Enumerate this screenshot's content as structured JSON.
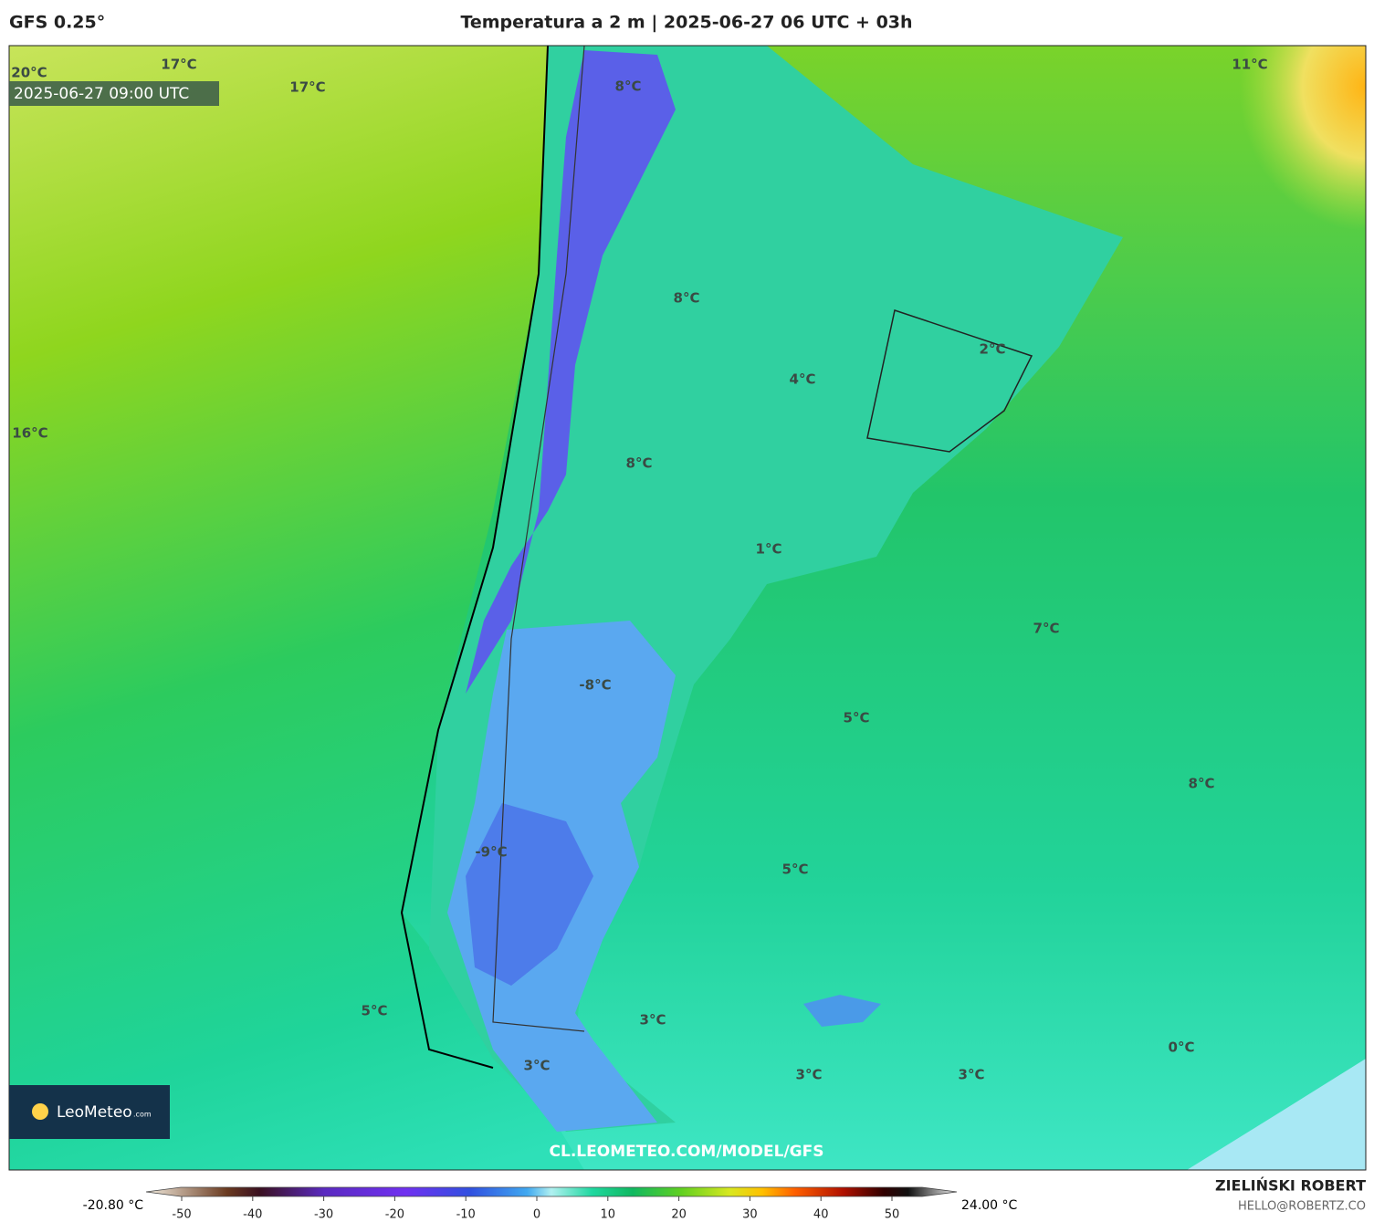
{
  "header": {
    "model": "GFS 0.25°",
    "title": "Temperatura a 2 m | 2025-06-27 06 UTC + 03h"
  },
  "map": {
    "valid_time": "2025-06-27 09:00 UTC",
    "watermark": "CL.LEOMETEO.COM/MODEL/GFS",
    "logo": "LeoMeteo",
    "logo_suffix": ".com",
    "labels": [
      "20°C",
      "17°C",
      "17°C",
      "11°C",
      "8°C",
      "8°C",
      "2°C",
      "4°C",
      "16°C",
      "8°C",
      "1°C",
      "7°C",
      "-8°C",
      "5°C",
      "8°C",
      "-9°C",
      "5°C",
      "5°C",
      "3°C",
      "0°C",
      "3°C",
      "3°C",
      "3°C"
    ]
  },
  "colorbar": {
    "min_label": "-20.80 °C",
    "max_label": "24.00 °C",
    "ticks": [
      -50,
      -40,
      -30,
      -20,
      -10,
      0,
      10,
      20,
      30,
      40,
      50
    ]
  },
  "footer": {
    "author": "ZIELIŃSKI ROBERT",
    "contact": "HELLO@ROBERTZ.CO"
  }
}
